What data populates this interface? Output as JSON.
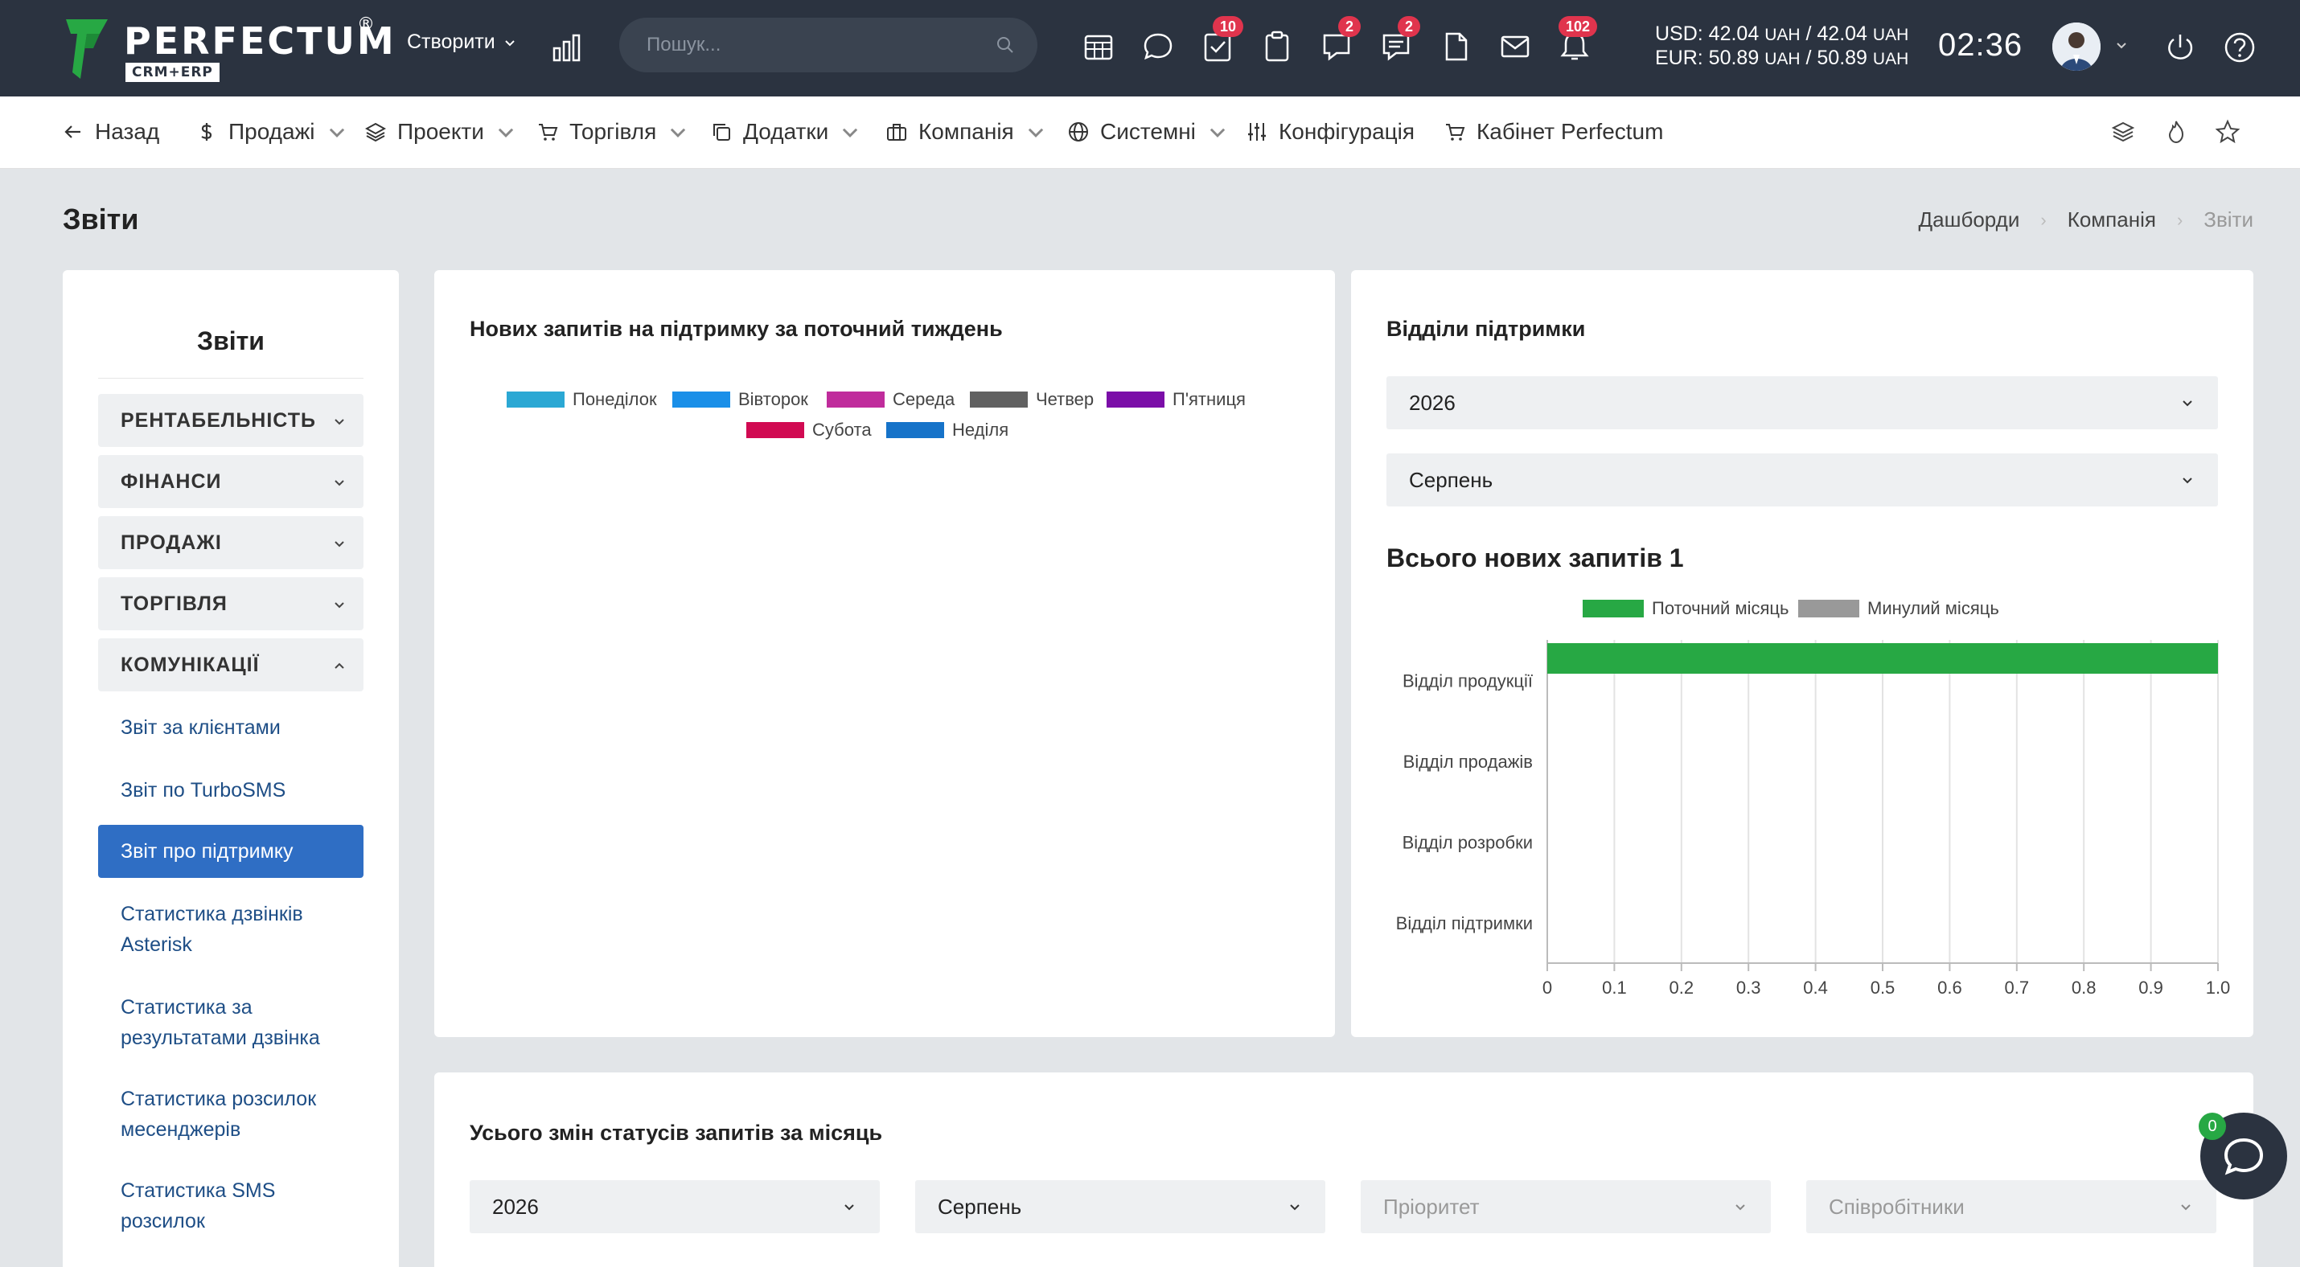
{
  "brand": {
    "name": "PERFECTUM",
    "reg": "®",
    "sub": "CRM+ERP",
    "color": "#27a844"
  },
  "topbar": {
    "create_label": "Створити",
    "search_placeholder": "Пошук...",
    "badges": {
      "tasks": "10",
      "chat": "2",
      "discussions": "2",
      "notifications": "102"
    },
    "usd_label": "USD: 42.04",
    "usd_unit1": "UAH",
    "usd_sep": " / 42.04 ",
    "usd_unit2": "UAH",
    "eur_label": "EUR: 50.89",
    "eur_unit1": "UAH",
    "eur_sep": " / 50.89 ",
    "eur_unit2": "UAH",
    "clock": "02:36"
  },
  "nav": {
    "back": "Назад",
    "sales": "Продажі",
    "projects": "Проекти",
    "trade": "Торгівля",
    "addons": "Додатки",
    "company": "Компанія",
    "system": "Системні",
    "config": "Конфігурація",
    "cabinet": "Кабінет Perfectum"
  },
  "page": {
    "title": "Звіти"
  },
  "breadcrumb": {
    "item1": "Дашборди",
    "item2": "Компанія",
    "item3": "Звіти"
  },
  "sidebar": {
    "title": "Звіти",
    "categories": [
      "РЕНТАБЕЛЬНІСТЬ",
      "ФІНАНСИ",
      "ПРОДАЖІ",
      "ТОРГІВЛЯ",
      "КОМУНІКАЦІЇ"
    ],
    "items": [
      {
        "label": "Звіт за клієнтами"
      },
      {
        "label": "Звіт по TurboSMS"
      },
      {
        "label": "Звіт про підтримку"
      },
      {
        "label": "Статистика дзвінків Asterisk"
      },
      {
        "label": "Статистика за результатами дзвінка"
      },
      {
        "label": "Статистика розсилок месенджерів"
      },
      {
        "label": "Статистика SMS розсилок"
      }
    ]
  },
  "weekly": {
    "title": "Нових запитів на підтримку за поточний тиждень",
    "legend": [
      {
        "label": "Понеділок",
        "color": "#2ba8d4"
      },
      {
        "label": "Вівторок",
        "color": "#1a8fe8"
      },
      {
        "label": "Середа",
        "color": "#c02c9c"
      },
      {
        "label": "Четвер",
        "color": "#616161"
      },
      {
        "label": "П'ятниця",
        "color": "#7b0ea8"
      },
      {
        "label": "Субота",
        "color": "#d10a52"
      },
      {
        "label": "Неділя",
        "color": "#1673c9"
      }
    ]
  },
  "departments": {
    "title": "Відділи підтримки",
    "year": "2026",
    "month": "Серпень",
    "total_label": "Всього нових запитів 1"
  },
  "chart_data": {
    "type": "bar",
    "orientation": "horizontal",
    "categories": [
      "Відділ продукції",
      "Відділ продажів",
      "Відділ розробки",
      "Відділ підтримки"
    ],
    "series": [
      {
        "name": "Поточний місяць",
        "values": [
          1,
          0,
          0,
          0
        ],
        "color": "#27a844"
      },
      {
        "name": "Минулий місяць",
        "values": [
          0,
          0,
          0,
          0
        ],
        "color": "#999999"
      }
    ],
    "xlim": [
      0,
      1.0
    ],
    "xticks": [
      "0",
      "0.1",
      "0.2",
      "0.3",
      "0.4",
      "0.5",
      "0.6",
      "0.7",
      "0.8",
      "0.9",
      "1.0"
    ],
    "grid": true,
    "legend_position": "top"
  },
  "status_changes": {
    "title": "Усього змін статусів запитів за місяць",
    "year": "2026",
    "month": "Серпень",
    "priority_placeholder": "Пріоритет",
    "staff_placeholder": "Співробітники"
  },
  "chat": {
    "badge": "0"
  }
}
